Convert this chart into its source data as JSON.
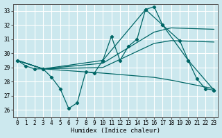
{
  "xlabel": "Humidex (Indice chaleur)",
  "background_color": "#cce8ee",
  "grid_color": "#aed6dc",
  "line_color": "#006666",
  "xlim": [
    -0.5,
    23.5
  ],
  "ylim": [
    25.5,
    33.5
  ],
  "yticks": [
    26,
    27,
    28,
    29,
    30,
    31,
    32,
    33
  ],
  "xticks": [
    0,
    1,
    2,
    3,
    4,
    5,
    6,
    7,
    8,
    9,
    10,
    11,
    12,
    13,
    14,
    15,
    16,
    17,
    18,
    19,
    20,
    21,
    22,
    23
  ],
  "series": [
    {
      "x": [
        0,
        1,
        2,
        3,
        4,
        5,
        6,
        7,
        8,
        9,
        10,
        11,
        12,
        13,
        14,
        15,
        16,
        17,
        19,
        20,
        21,
        22,
        23
      ],
      "y": [
        29.5,
        29.1,
        28.9,
        28.9,
        28.3,
        27.5,
        26.1,
        26.5,
        28.7,
        28.6,
        29.5,
        31.2,
        29.5,
        30.5,
        31.0,
        33.1,
        33.3,
        32.0,
        30.9,
        29.5,
        28.2,
        27.5,
        27.4
      ],
      "marker": true
    },
    {
      "x": [
        0,
        3,
        10,
        15,
        17,
        20,
        23
      ],
      "y": [
        29.5,
        28.9,
        29.5,
        33.1,
        32.0,
        29.5,
        27.4
      ],
      "marker": true
    },
    {
      "x": [
        0,
        3,
        10,
        16,
        18,
        23
      ],
      "y": [
        29.5,
        28.9,
        29.3,
        31.5,
        31.8,
        31.7
      ],
      "marker": false
    },
    {
      "x": [
        0,
        3,
        10,
        16,
        18,
        23
      ],
      "y": [
        29.5,
        28.9,
        29.0,
        30.7,
        30.9,
        30.8
      ],
      "marker": false
    },
    {
      "x": [
        0,
        3,
        10,
        16,
        18,
        23
      ],
      "y": [
        29.5,
        28.9,
        28.6,
        28.3,
        28.1,
        27.5
      ],
      "marker": false
    }
  ]
}
